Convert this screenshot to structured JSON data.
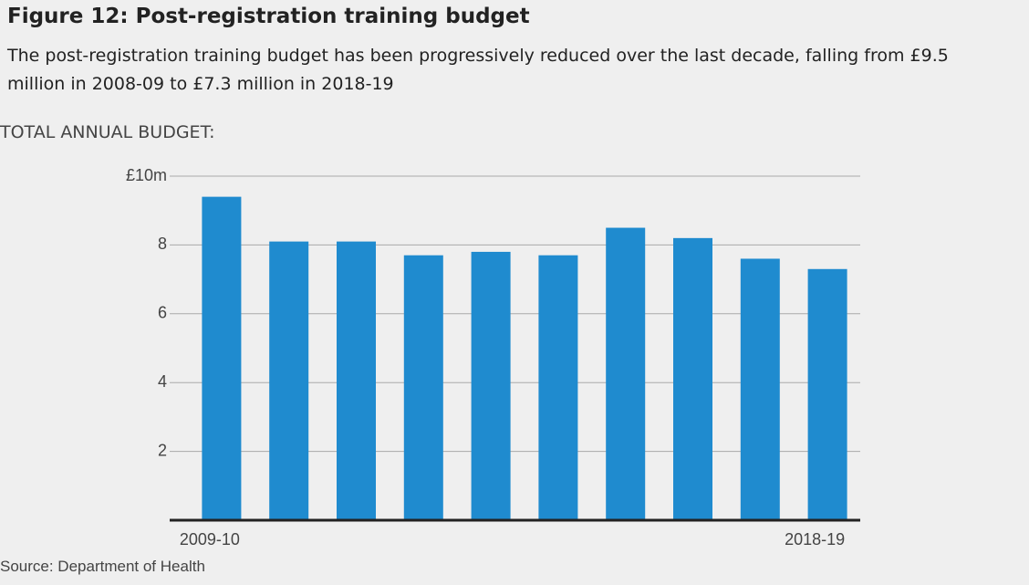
{
  "chart_data": {
    "type": "bar",
    "title": "Figure 12: Post-registration training budget",
    "subtitle": "The post-registration training budget has been progressively reduced over the last decade, falling from £9.5 million in 2008-09 to £7.3 million in 2018-19",
    "y_label": "TOTAL ANNUAL BUDGET:",
    "source": "Source: Department of Health",
    "categories": [
      "2009-10",
      null,
      null,
      null,
      null,
      null,
      null,
      null,
      null,
      "2018-19"
    ],
    "values": [
      9.4,
      8.1,
      8.1,
      7.7,
      7.8,
      7.7,
      8.5,
      8.2,
      7.6,
      7.3
    ],
    "color": "#1f8bcf",
    "ylim": [
      0,
      10
    ],
    "yticks": [
      2,
      4,
      6,
      8,
      {
        "value": 10,
        "label": "£10m"
      }
    ],
    "grid": true
  }
}
